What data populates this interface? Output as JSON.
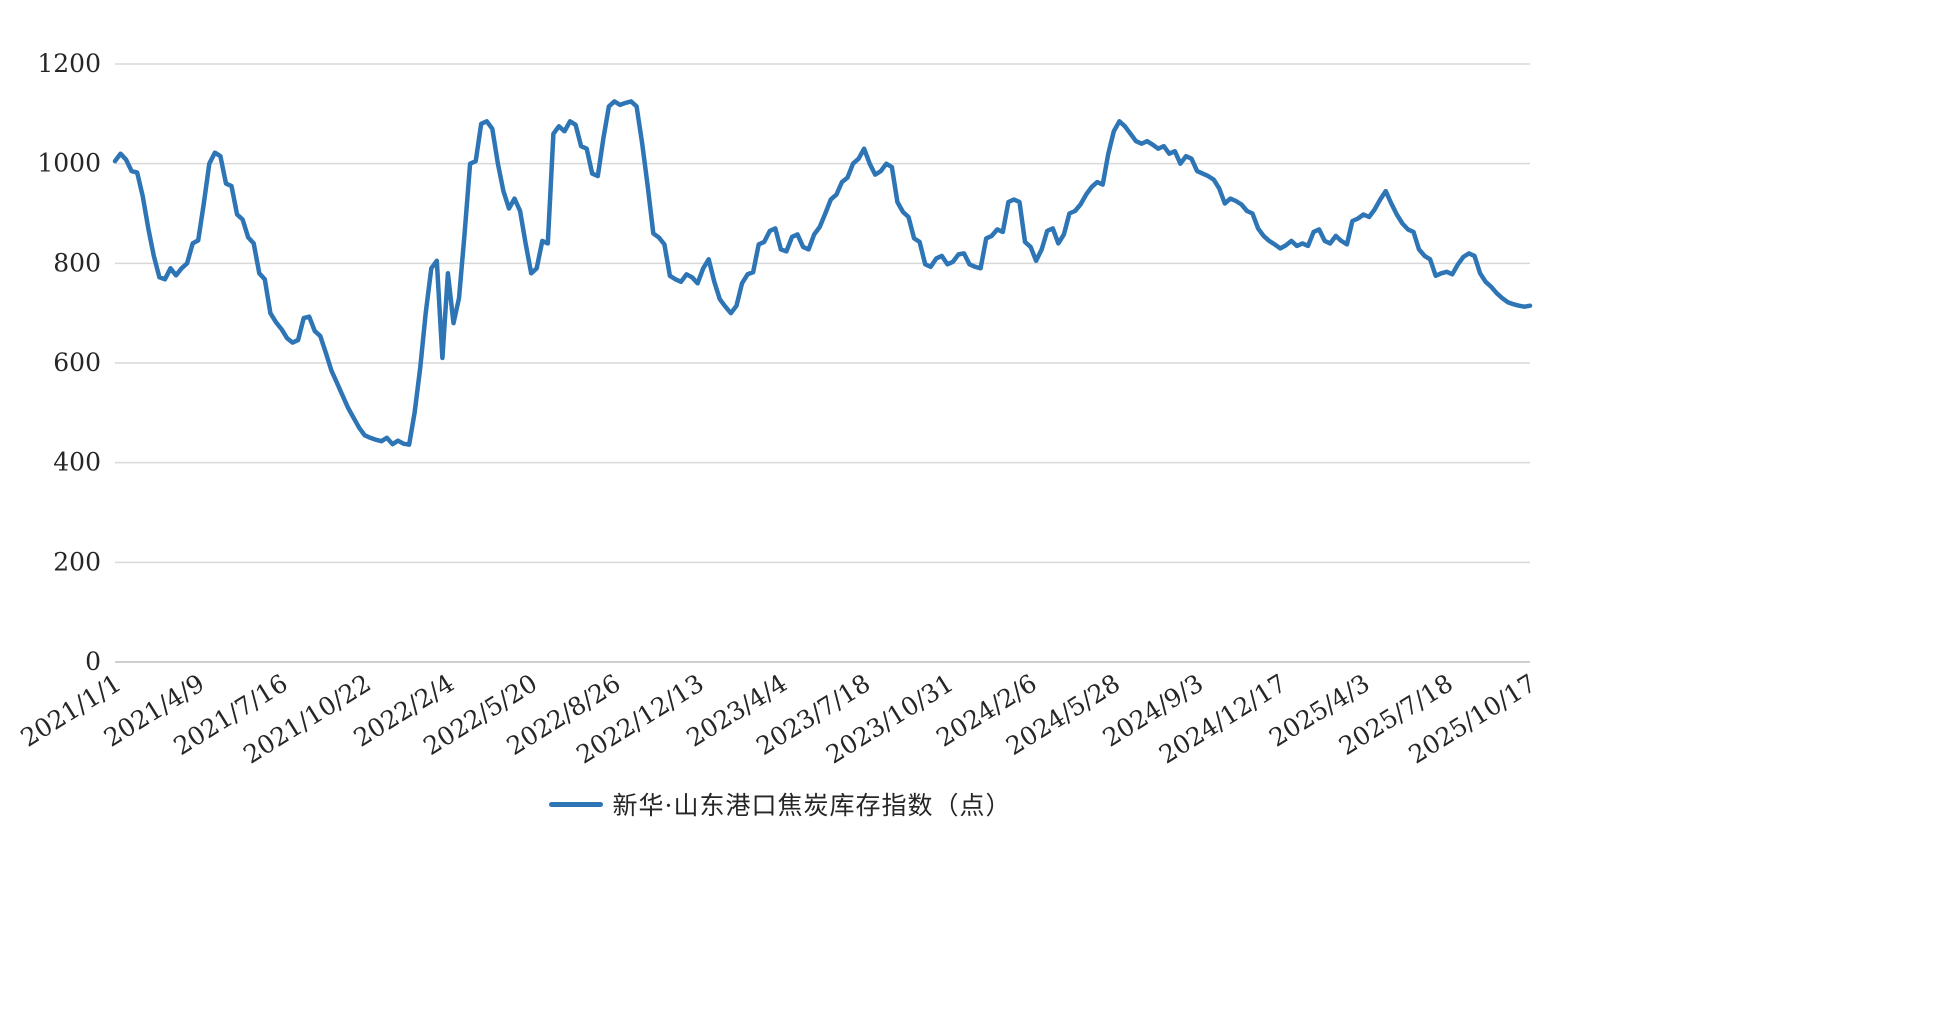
{
  "legend": {
    "label": "新华·山东港口焦炭库存指数（点）"
  },
  "chart_data": {
    "type": "line",
    "title": "",
    "xlabel": "",
    "ylabel": "",
    "ylim": [
      0,
      1200
    ],
    "y_ticks": [
      0,
      200,
      400,
      600,
      800,
      1000,
      1200
    ],
    "grid": "horizontal",
    "legend_position": "bottom",
    "line_color": "#2E75B6",
    "grid_color": "#D9D9D9",
    "axis_color": "#BFBFBF",
    "tick_every": 15,
    "x_tick_labels": [
      "2021/1/1",
      "2021/4/9",
      "2021/7/16",
      "2021/10/22",
      "2022/2/4",
      "2022/5/20",
      "2022/8/26",
      "2022/12/13",
      "2023/4/4",
      "2023/7/18",
      "2023/10/31",
      "2024/2/6",
      "2024/5/28",
      "2024/9/3",
      "2024/12/17",
      "2025/4/3",
      "2025/7/18",
      "2025/10/17"
    ],
    "series": [
      {
        "name": "新华·山东港口焦炭库存指数（点）",
        "values": [
          1005,
          1020,
          1008,
          985,
          982,
          935,
          870,
          815,
          772,
          768,
          790,
          776,
          790,
          800,
          840,
          846,
          920,
          1000,
          1022,
          1015,
          960,
          955,
          898,
          888,
          852,
          840,
          780,
          768,
          700,
          682,
          668,
          650,
          641,
          646,
          690,
          693,
          664,
          654,
          620,
          585,
          560,
          535,
          510,
          490,
          470,
          455,
          450,
          446,
          443,
          450,
          437,
          444,
          438,
          436,
          500,
          590,
          700,
          790,
          805,
          610,
          780,
          680,
          730,
          860,
          1000,
          1005,
          1080,
          1085,
          1070,
          1000,
          945,
          910,
          930,
          905,
          840,
          780,
          790,
          845,
          840,
          1060,
          1075,
          1065,
          1085,
          1078,
          1035,
          1030,
          980,
          975,
          1050,
          1115,
          1125,
          1118,
          1122,
          1125,
          1115,
          1040,
          955,
          860,
          852,
          838,
          775,
          768,
          763,
          778,
          772,
          760,
          790,
          808,
          763,
          728,
          713,
          700,
          715,
          760,
          778,
          782,
          838,
          843,
          865,
          870,
          828,
          824,
          853,
          858,
          833,
          828,
          858,
          873,
          900,
          928,
          938,
          963,
          972,
          1000,
          1010,
          1030,
          1000,
          978,
          985,
          1000,
          993,
          923,
          903,
          893,
          850,
          843,
          798,
          793,
          810,
          815,
          798,
          803,
          818,
          820,
          798,
          793,
          790,
          850,
          855,
          868,
          863,
          923,
          928,
          923,
          843,
          833,
          805,
          828,
          865,
          870,
          840,
          858,
          900,
          905,
          918,
          938,
          953,
          963,
          958,
          1020,
          1065,
          1085,
          1075,
          1060,
          1045,
          1040,
          1045,
          1038,
          1030,
          1035,
          1020,
          1025,
          1000,
          1015,
          1010,
          985,
          980,
          975,
          968,
          950,
          920,
          930,
          925,
          918,
          905,
          900,
          870,
          855,
          845,
          838,
          830,
          836,
          845,
          835,
          840,
          835,
          863,
          868,
          845,
          840,
          855,
          845,
          838,
          885,
          890,
          898,
          893,
          908,
          928,
          945,
          920,
          898,
          880,
          868,
          863,
          828,
          815,
          808,
          775,
          780,
          783,
          778,
          798,
          813,
          820,
          815,
          780,
          763,
          753,
          740,
          730,
          722,
          718,
          715,
          713,
          715
        ]
      }
    ]
  }
}
